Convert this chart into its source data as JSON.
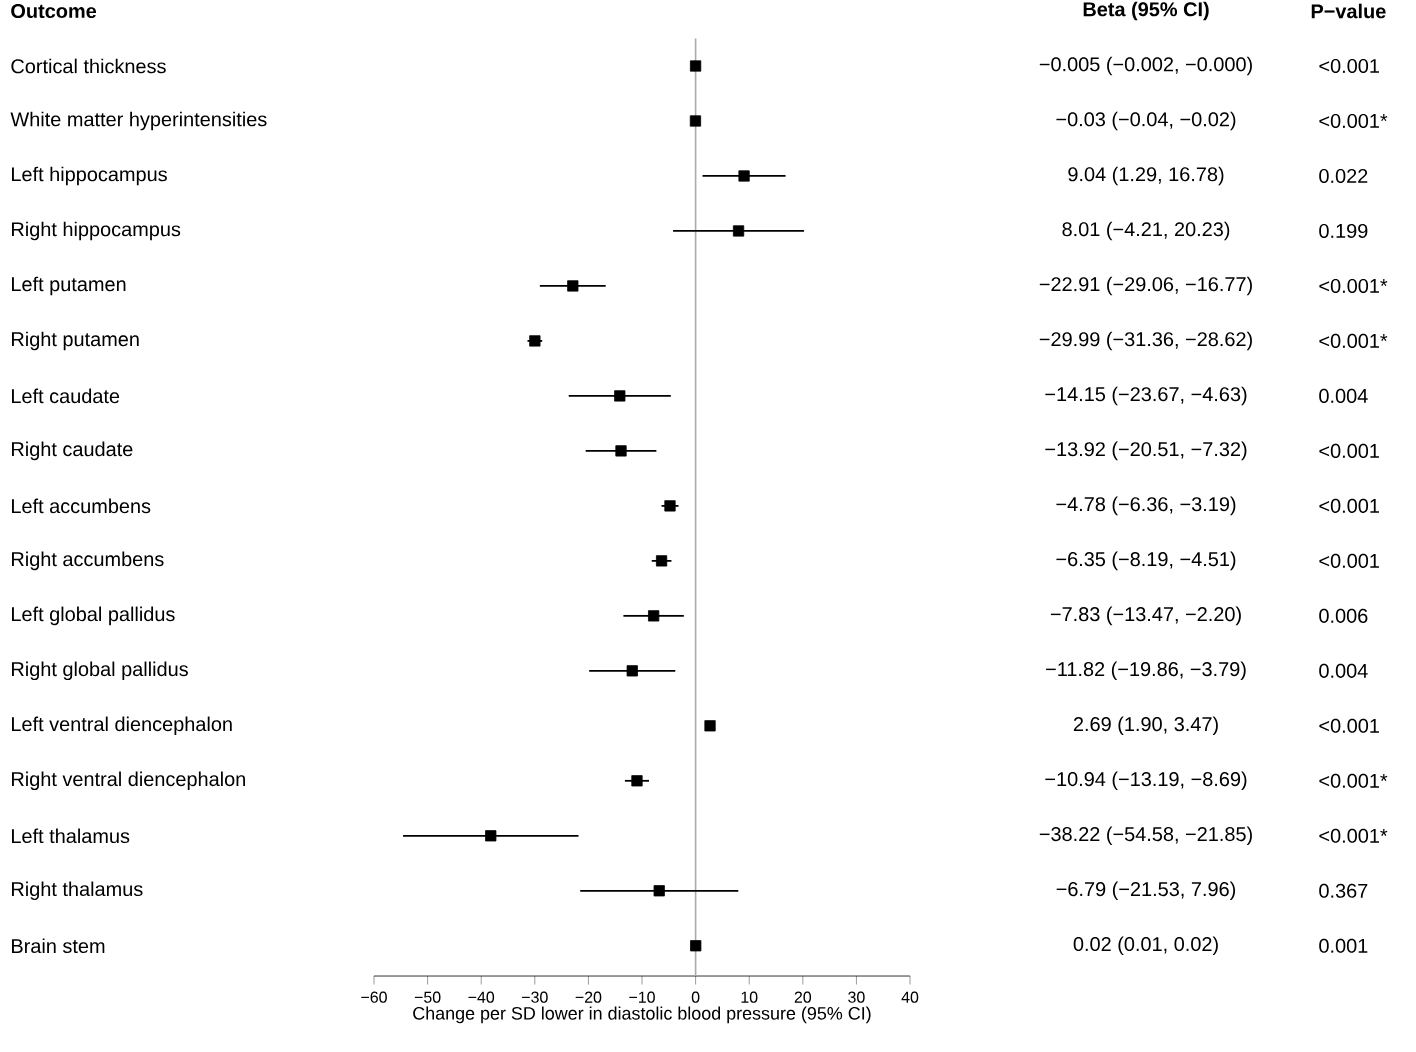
{
  "chart_data": {
    "type": "scatter",
    "orientation": "horizontal",
    "marker": "square",
    "color": "#000000",
    "ylabel": "Outcome",
    "xlabel": "Change per SD lower in diastolic blood pressure (95% CI)",
    "categories": [
      "Cortical thickness",
      "White matter hyperintensities",
      "Left hippocampus",
      "Right hippocampus",
      "Left putamen",
      "Right putamen",
      "Left caudate",
      "Right caudate",
      "Left accumbens",
      "Right accumbens",
      "Left global pallidus",
      "Right global pallidus",
      "Left ventral diencephalon",
      "Right ventral diencephalon",
      "Left thalamus",
      "Right thalamus",
      "Brain stem"
    ],
    "values": [
      -0.005,
      -0.03,
      9.04,
      8.01,
      -22.91,
      -29.99,
      -14.15,
      -13.92,
      -4.78,
      -6.35,
      -7.83,
      -11.82,
      2.69,
      -10.94,
      -38.22,
      -6.79,
      0.02
    ],
    "errors": [
      null,
      null,
      [
        1.29,
        16.78
      ],
      [
        -4.21,
        20.23
      ],
      [
        -29.06,
        -16.77
      ],
      [
        -31.36,
        -28.62
      ],
      [
        -23.67,
        -4.63
      ],
      [
        -20.51,
        -7.32
      ],
      [
        -6.36,
        -3.19
      ],
      [
        -8.19,
        -4.51
      ],
      [
        -13.47,
        -2.2
      ],
      [
        -19.86,
        -3.79
      ],
      [
        1.9,
        3.47
      ],
      [
        -13.19,
        -8.69
      ],
      [
        -54.58,
        -21.85
      ],
      [
        -21.53,
        7.96
      ],
      null
    ],
    "annotations": [
      "Beta (95% CI)",
      "P−value",
      "−0.005 (−0.002, −0.000)",
      "−0.03 (−0.04, −0.02)",
      "9.04 (1.29, 16.78)",
      "8.01 (−4.21, 20.23)",
      "−22.91 (−29.06, −16.77)",
      "−29.99 (−31.36, −28.62)",
      "−14.15 (−23.67, −4.63)",
      "−13.92 (−20.51, −7.32)",
      "−4.78 (−6.36, −3.19)",
      "−6.35 (−8.19, −4.51)",
      "−7.83 (−13.47, −2.20)",
      "−11.82 (−19.86, −3.79)",
      "2.69 (1.90, 3.47)",
      "−10.94 (−13.19, −8.69)",
      "−38.22 (−54.58, −21.85)",
      "−6.79 (−21.53, 7.96)",
      "0.02 (0.01, 0.02)",
      "<0.001",
      "<0.001*",
      "0.022",
      "0.199",
      "<0.001*",
      "<0.001*",
      "0.004",
      "<0.001",
      "<0.001",
      "<0.001",
      "0.006",
      "0.004",
      "<0.001",
      "<0.001*",
      "<0.001*",
      "0.367",
      "0.001"
    ],
    "ref_lines": [
      {
        "axis": "x",
        "value": 0,
        "color": "#aaaaaa"
      }
    ],
    "xlim": [
      -60,
      40
    ],
    "xticks": [
      {
        "value": -60,
        "label": "−60"
      },
      {
        "value": -50,
        "label": "−50"
      },
      {
        "value": -40,
        "label": "−40"
      },
      {
        "value": -30,
        "label": "−30"
      },
      {
        "value": -20,
        "label": "−20"
      },
      {
        "value": -10,
        "label": "−10"
      },
      0,
      10,
      20,
      30,
      40
    ],
    "tick_labels": "x"
  }
}
